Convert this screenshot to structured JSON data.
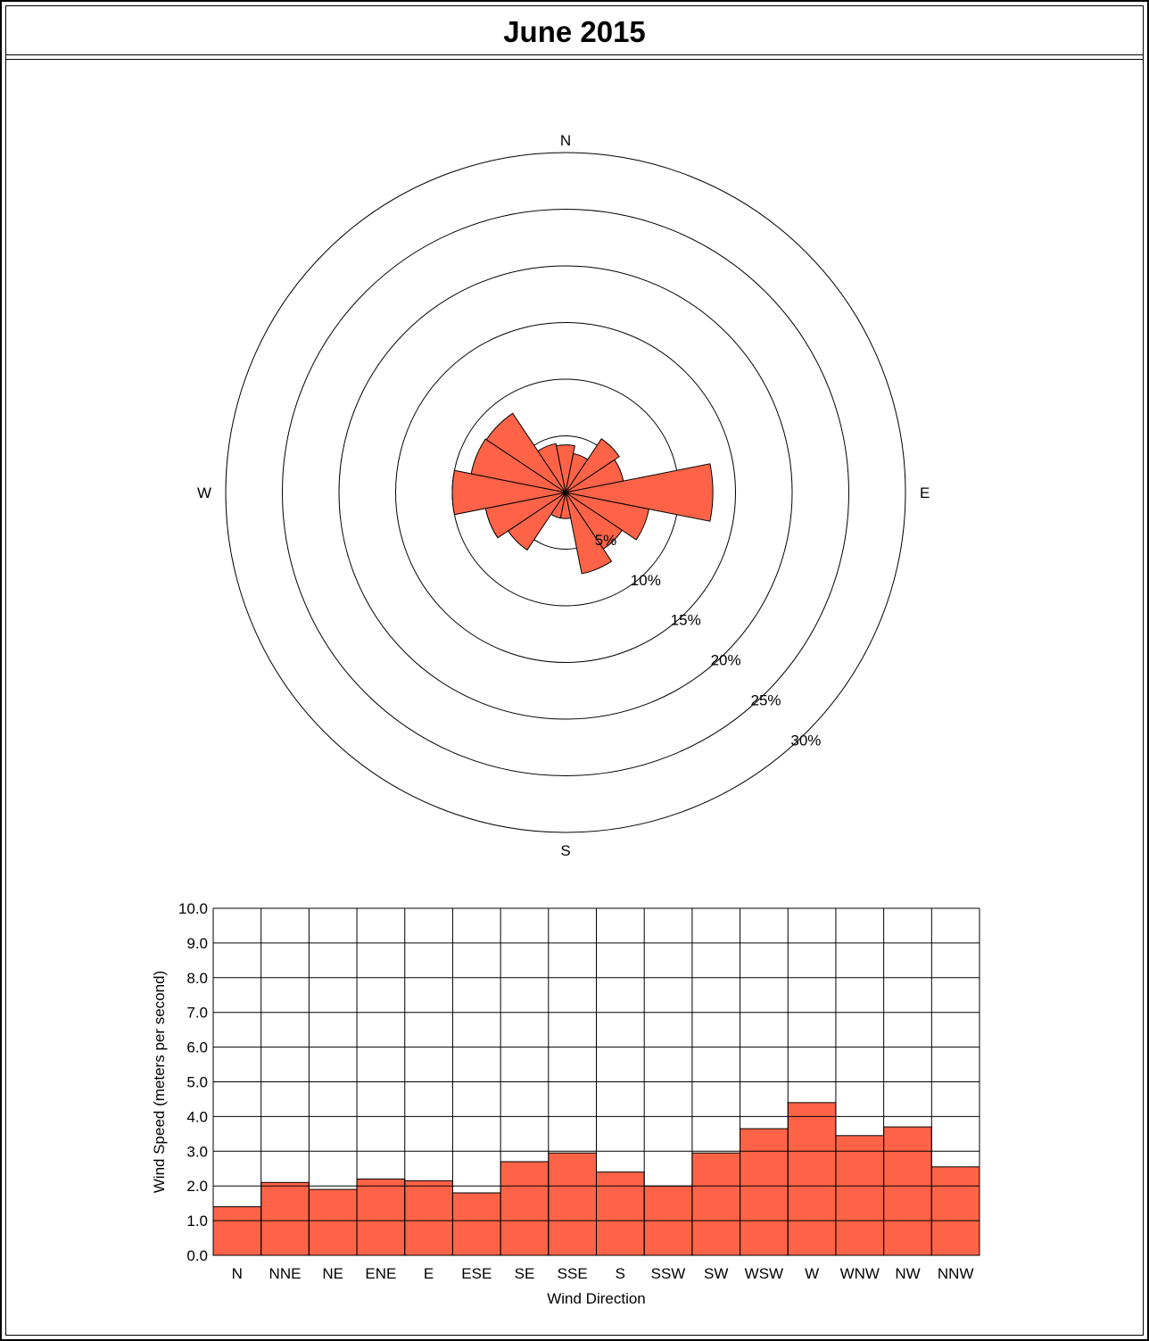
{
  "title": "June 2015",
  "colors": {
    "bar_fill": "#ff6347",
    "line": "#000000",
    "background": "#ffffff"
  },
  "chart_data": [
    {
      "type": "polar-bar",
      "chart": "wind-rose",
      "compass_labels": {
        "north": "N",
        "east": "E",
        "south": "S",
        "west": "W"
      },
      "directions": [
        "N",
        "NNE",
        "NE",
        "ENE",
        "E",
        "ESE",
        "SE",
        "SSE",
        "S",
        "SSW",
        "SW",
        "WSW",
        "W",
        "WNW",
        "NW",
        "NNW"
      ],
      "frequency_percent": [
        4.2,
        3.5,
        5.7,
        5.2,
        13.0,
        7.5,
        6.0,
        7.3,
        2.3,
        2.3,
        6.1,
        7.2,
        10.0,
        8.5,
        8.4,
        4.4
      ],
      "ring_values": [
        5,
        10,
        15,
        20,
        25,
        30
      ],
      "ring_labels": [
        "5%",
        "10%",
        "15%",
        "20%",
        "25%",
        "30%"
      ],
      "rmax": 30
    },
    {
      "type": "bar",
      "categories": [
        "N",
        "NNE",
        "NE",
        "ENE",
        "E",
        "ESE",
        "SE",
        "SSE",
        "S",
        "SSW",
        "SW",
        "WSW",
        "W",
        "WNW",
        "NW",
        "NNW"
      ],
      "values": [
        1.4,
        2.1,
        1.9,
        2.2,
        2.15,
        1.8,
        2.7,
        2.95,
        2.4,
        2.0,
        2.95,
        3.65,
        4.4,
        3.45,
        3.7,
        2.55
      ],
      "ylim": [
        0,
        10
      ],
      "yticks": [
        "0.0",
        "1.0",
        "2.0",
        "3.0",
        "4.0",
        "5.0",
        "6.0",
        "7.0",
        "8.0",
        "9.0",
        "10.0"
      ],
      "xlabel": "Wind Direction",
      "ylabel": "Wind Speed (meters per second)",
      "grid": true
    }
  ]
}
